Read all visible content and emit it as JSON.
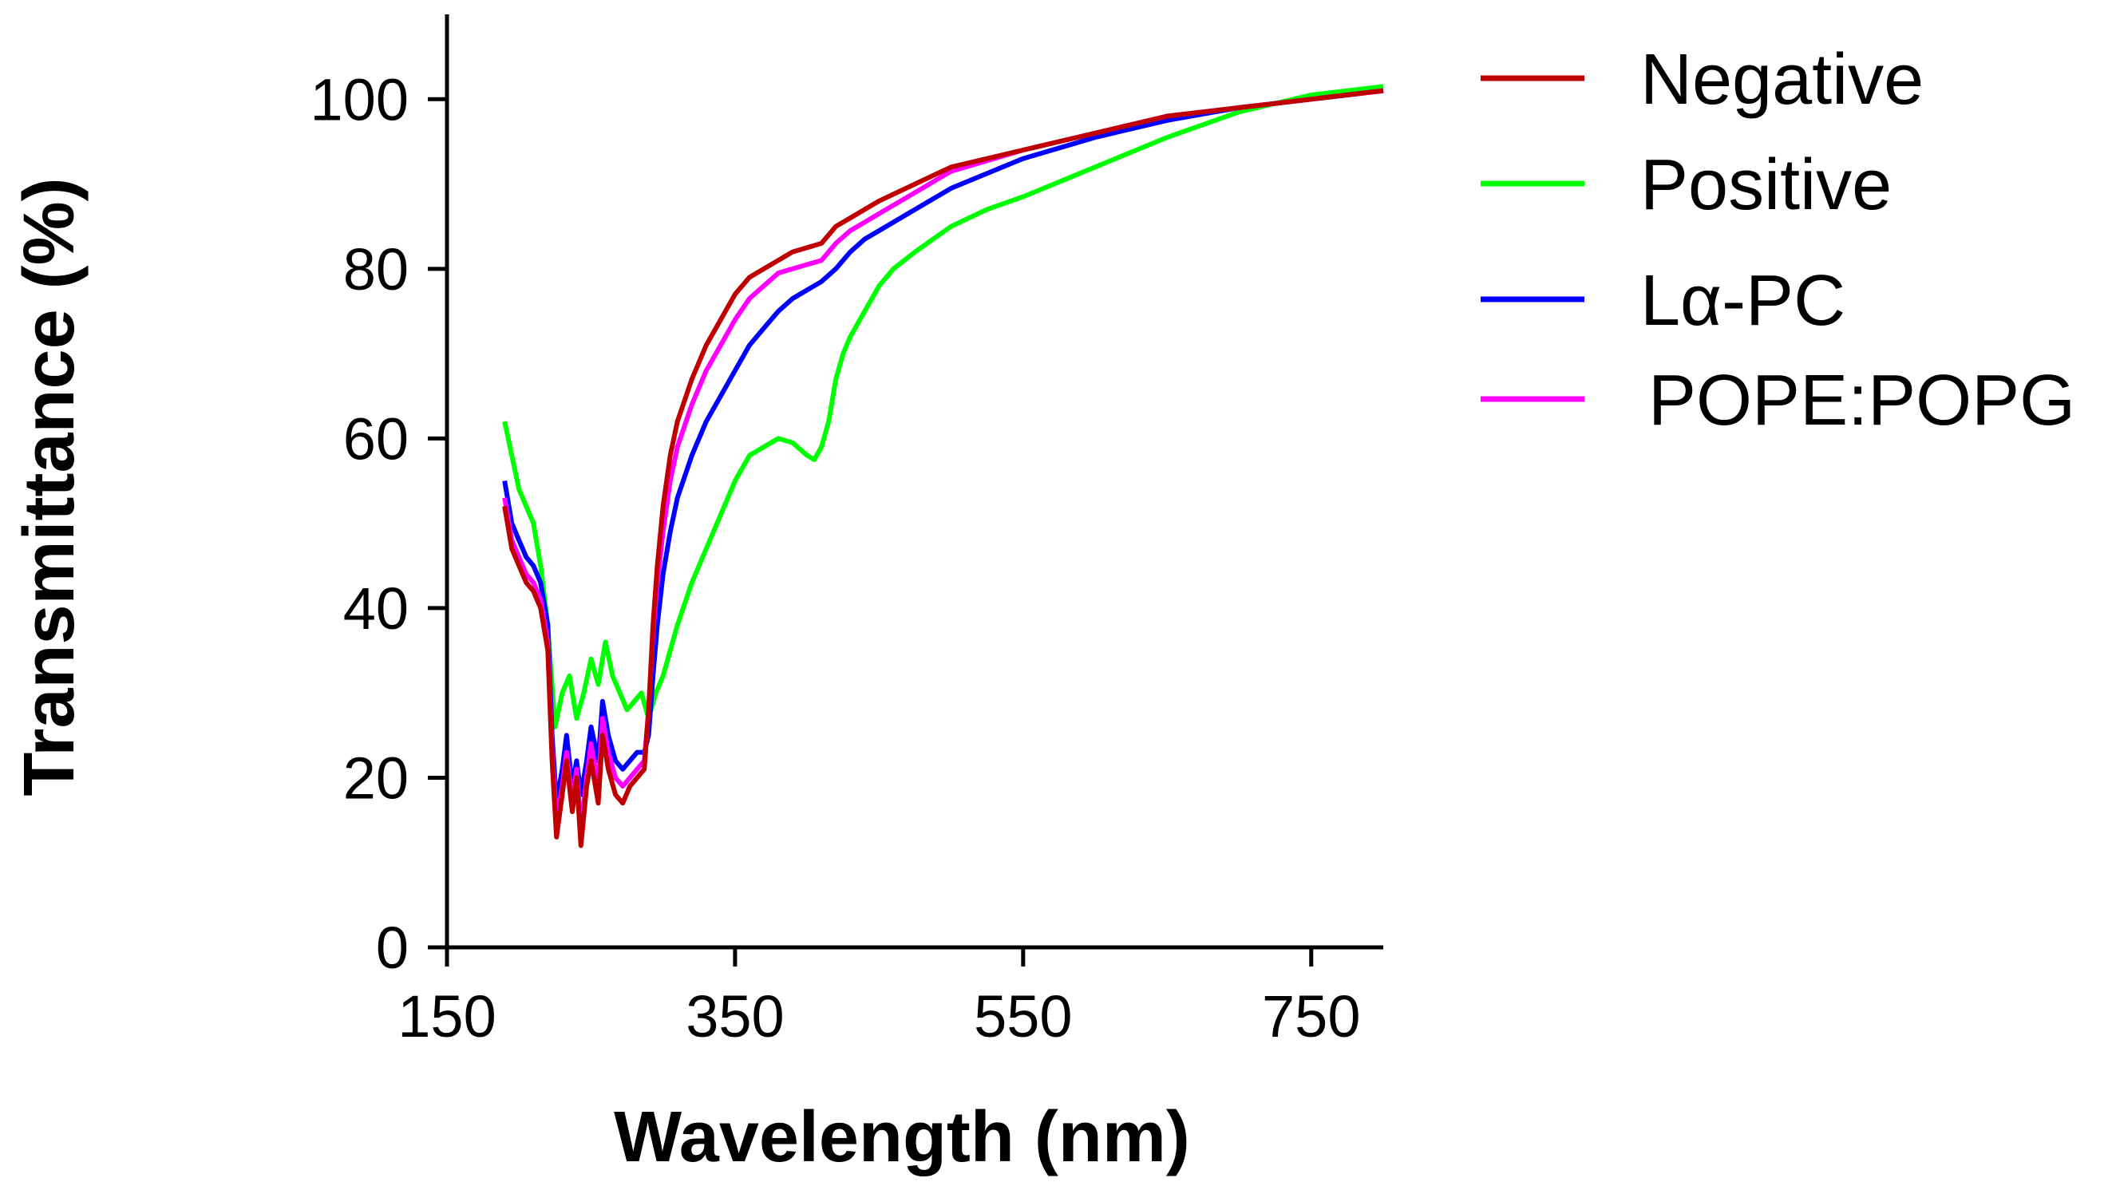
{
  "chart_data": {
    "type": "line",
    "title": "",
    "xlabel": "Wavelength (nm)",
    "ylabel": "Transmittance (%)",
    "xlim": [
      150,
      800
    ],
    "ylim": [
      0,
      110
    ],
    "xticks": [
      150,
      350,
      550,
      750
    ],
    "yticks": [
      0,
      20,
      40,
      60,
      80,
      100
    ],
    "grid": false,
    "legend_position": "top-right outside",
    "series": [
      {
        "name": "Negative",
        "color": "#c00000",
        "x": [
          190,
          195,
          200,
          205,
          210,
          215,
          220,
          223,
          226,
          230,
          233,
          237,
          240,
          243,
          247,
          250,
          255,
          258,
          262,
          267,
          272,
          277,
          282,
          287,
          290,
          293,
          296,
          300,
          305,
          310,
          320,
          330,
          340,
          350,
          360,
          370,
          380,
          390,
          400,
          410,
          420,
          430,
          440,
          450,
          475,
          500,
          550,
          600,
          650,
          700,
          750,
          800
        ],
        "y": [
          52,
          47,
          45,
          43,
          42,
          40,
          35,
          22,
          13,
          18,
          22,
          16,
          20,
          12,
          19,
          22,
          17,
          25,
          21,
          18,
          17,
          19,
          20,
          21,
          28,
          38,
          45,
          52,
          58,
          62,
          67,
          71,
          74,
          77,
          79,
          80,
          81,
          82,
          82.5,
          83,
          85,
          86,
          87,
          88,
          90,
          92,
          94,
          96,
          98,
          99,
          100,
          101
        ]
      },
      {
        "name": "Positive",
        "color": "#00ff00",
        "x": [
          190,
          195,
          200,
          205,
          210,
          215,
          220,
          225,
          230,
          235,
          240,
          245,
          250,
          255,
          260,
          265,
          270,
          275,
          280,
          285,
          290,
          295,
          300,
          305,
          310,
          320,
          330,
          340,
          350,
          360,
          370,
          380,
          390,
          400,
          405,
          410,
          415,
          420,
          425,
          430,
          440,
          450,
          460,
          475,
          500,
          525,
          550,
          600,
          650,
          700,
          750,
          800
        ],
        "y": [
          62,
          58,
          54,
          52,
          50,
          45,
          38,
          26,
          30,
          32,
          27,
          30,
          34,
          31,
          36,
          32,
          30,
          28,
          29,
          30,
          27,
          30,
          32,
          35,
          38,
          43,
          47,
          51,
          55,
          58,
          59,
          60,
          59.5,
          58,
          57.5,
          59,
          62,
          67,
          70,
          72,
          75,
          78,
          80,
          82,
          85,
          87,
          88.5,
          92,
          95.5,
          98.5,
          100.5,
          101.5
        ]
      },
      {
        "name": "Lα-PC",
        "color": "#0000ff",
        "x": [
          190,
          195,
          200,
          205,
          210,
          215,
          220,
          223,
          226,
          230,
          233,
          237,
          240,
          243,
          247,
          250,
          255,
          258,
          262,
          267,
          272,
          277,
          282,
          287,
          290,
          293,
          296,
          300,
          305,
          310,
          320,
          330,
          340,
          350,
          360,
          370,
          380,
          390,
          400,
          410,
          420,
          430,
          440,
          450,
          475,
          500,
          550,
          600,
          650,
          700,
          750,
          800
        ],
        "y": [
          55,
          50,
          48,
          46,
          45,
          43,
          38,
          25,
          17,
          21,
          25,
          19,
          22,
          18,
          22,
          26,
          22,
          29,
          25,
          22,
          21,
          22,
          23,
          23,
          25,
          32,
          38,
          44,
          49,
          53,
          58,
          62,
          65,
          68,
          71,
          73,
          75,
          76.5,
          77.5,
          78.5,
          80,
          82,
          83.5,
          84.5,
          87,
          89.5,
          93,
          95.5,
          97.5,
          99,
          100,
          101
        ]
      },
      {
        "name": "POPE:POPG",
        "color": "#ff00ff",
        "x": [
          190,
          195,
          200,
          205,
          210,
          215,
          220,
          223,
          226,
          230,
          233,
          237,
          240,
          243,
          247,
          250,
          255,
          258,
          262,
          267,
          272,
          277,
          282,
          287,
          290,
          293,
          296,
          300,
          305,
          310,
          320,
          330,
          340,
          350,
          360,
          370,
          380,
          390,
          400,
          410,
          420,
          430,
          440,
          450,
          475,
          500,
          550,
          600,
          650,
          700,
          750,
          800
        ],
        "y": [
          53,
          48,
          46,
          44,
          43,
          41,
          36,
          23,
          15,
          19,
          23,
          17,
          21,
          14,
          20,
          24,
          19,
          27,
          23,
          20,
          19,
          20,
          21,
          22,
          28,
          37,
          43,
          49,
          55,
          59,
          64,
          68,
          71,
          74,
          76.5,
          78,
          79.5,
          80,
          80.5,
          81,
          83,
          84.5,
          85.5,
          86.5,
          89,
          91.5,
          94,
          96,
          98,
          99,
          100,
          101
        ]
      }
    ]
  }
}
